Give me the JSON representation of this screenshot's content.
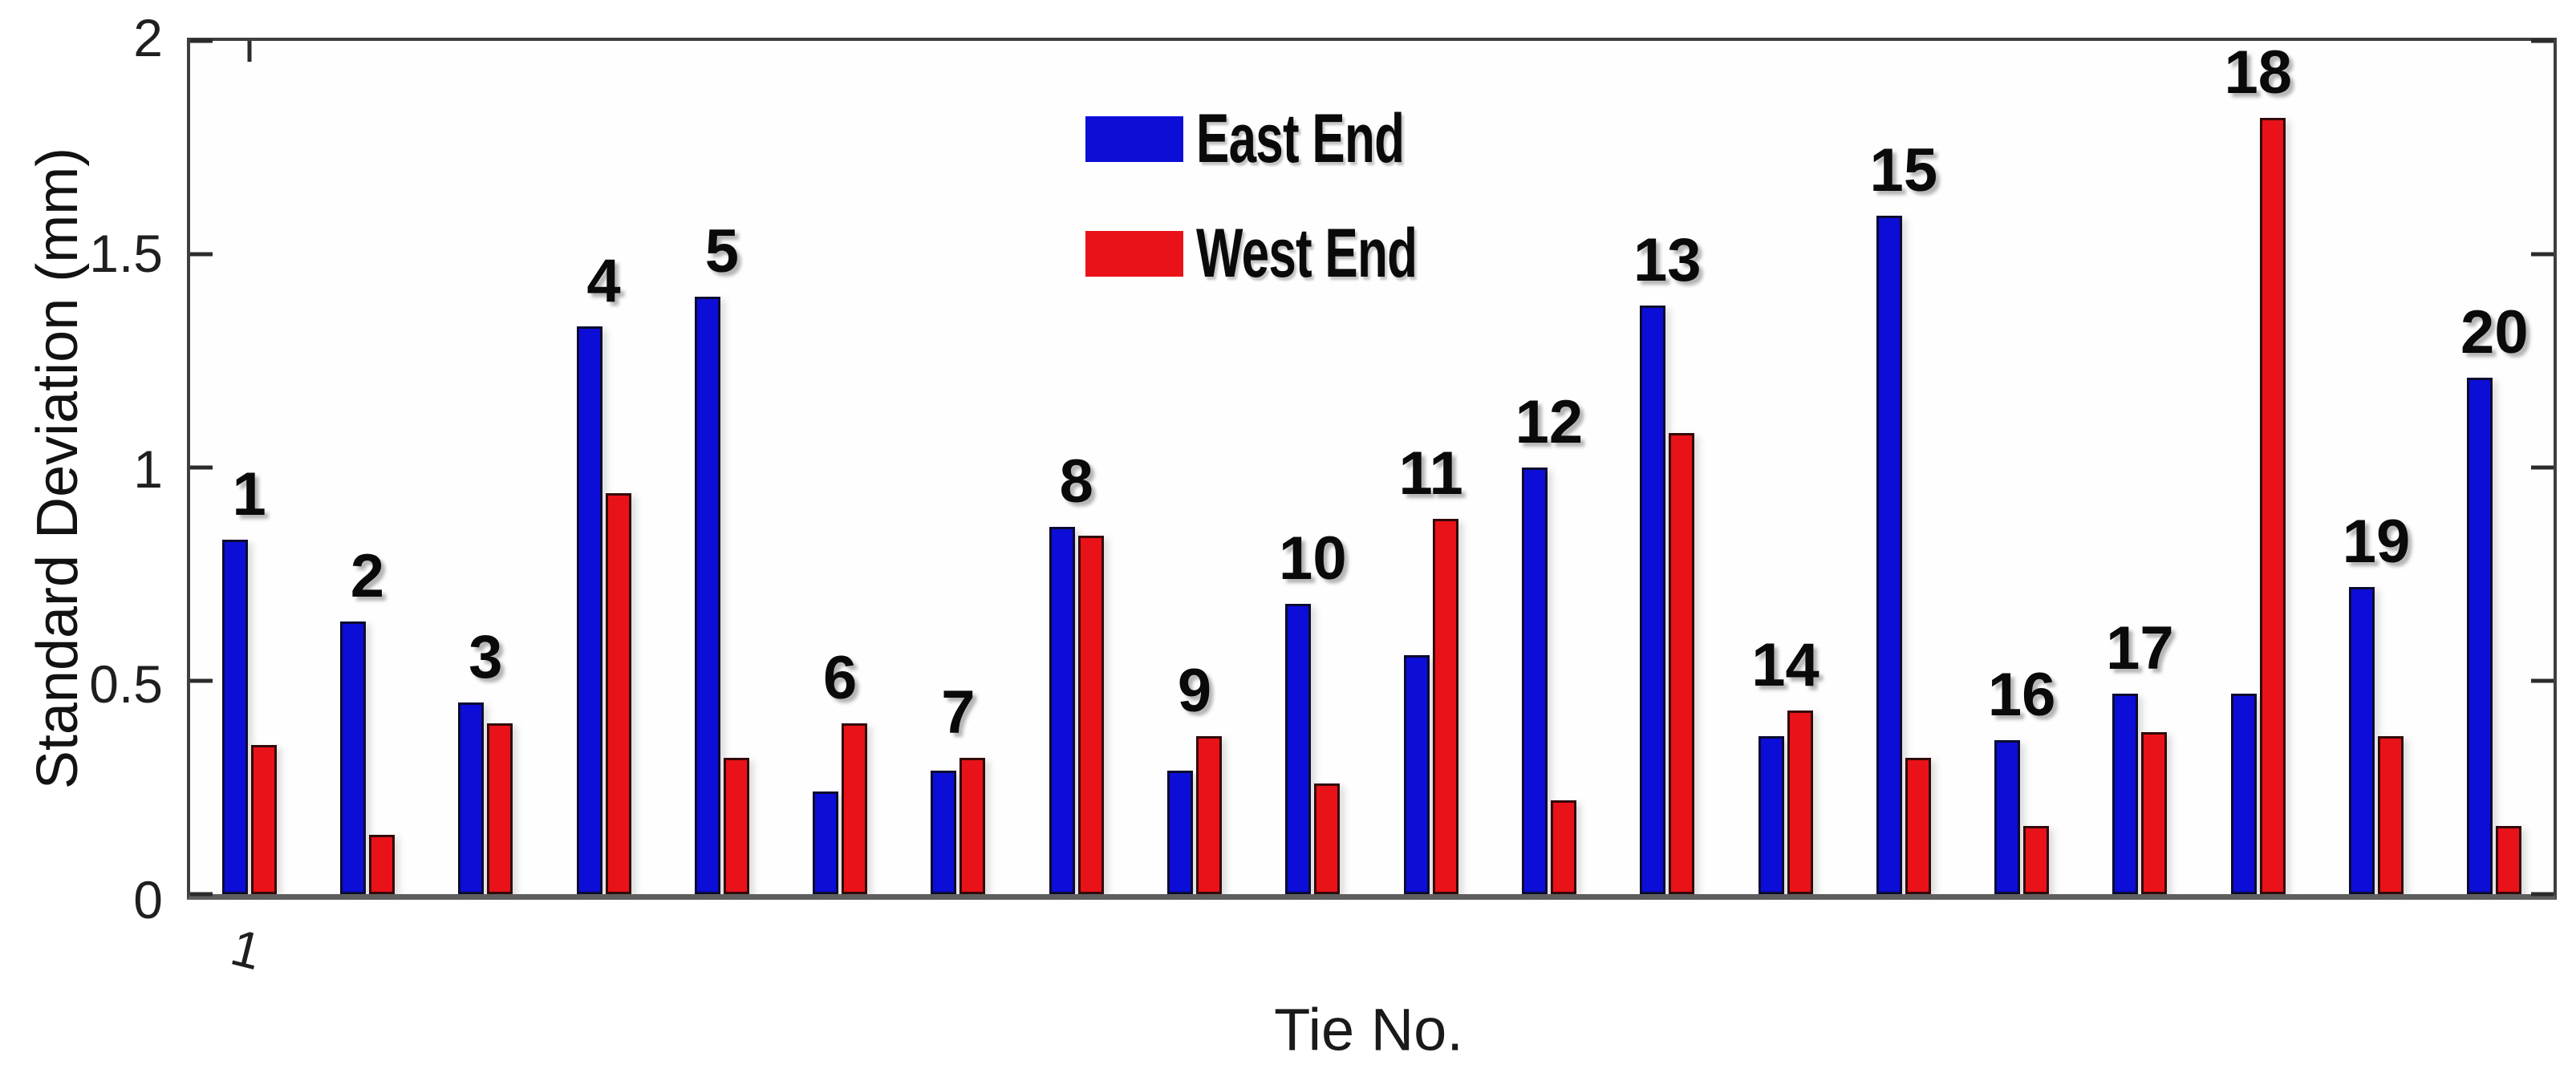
{
  "chart_data": {
    "type": "bar",
    "title": "",
    "xlabel": "Tie No.",
    "ylabel": "Standard Deviation (mm)",
    "categories": [
      "1",
      "2",
      "3",
      "4",
      "5",
      "6",
      "7",
      "8",
      "9",
      "10",
      "11",
      "12",
      "13",
      "14",
      "15",
      "16",
      "17",
      "18",
      "19",
      "20"
    ],
    "series": [
      {
        "name": "East End",
        "color": "#0d0dd8",
        "values": [
          0.83,
          0.64,
          0.45,
          1.33,
          1.4,
          0.24,
          0.29,
          0.86,
          0.29,
          0.68,
          0.56,
          1.0,
          1.38,
          0.37,
          1.59,
          0.36,
          0.47,
          0.47,
          0.72,
          1.21
        ]
      },
      {
        "name": "West End",
        "color": "#ea1219",
        "values": [
          0.35,
          0.14,
          0.4,
          0.94,
          0.32,
          0.4,
          0.32,
          0.84,
          0.37,
          0.26,
          0.88,
          0.22,
          1.08,
          0.43,
          0.32,
          0.16,
          0.38,
          1.82,
          0.37,
          0.16
        ]
      }
    ],
    "ylim": [
      0,
      2
    ],
    "yticks": [
      0,
      0.5,
      1,
      1.5,
      2
    ],
    "ytick_labels": [
      "0",
      "0.5",
      "1",
      "1.5",
      "2"
    ],
    "xtick_labels": [
      "1"
    ],
    "grid": false,
    "legend_position": "top-center-inside",
    "bar_group_number_labels": true,
    "frame_color": "#3f3f3f",
    "axis_line_color": "#5e5e5e"
  }
}
